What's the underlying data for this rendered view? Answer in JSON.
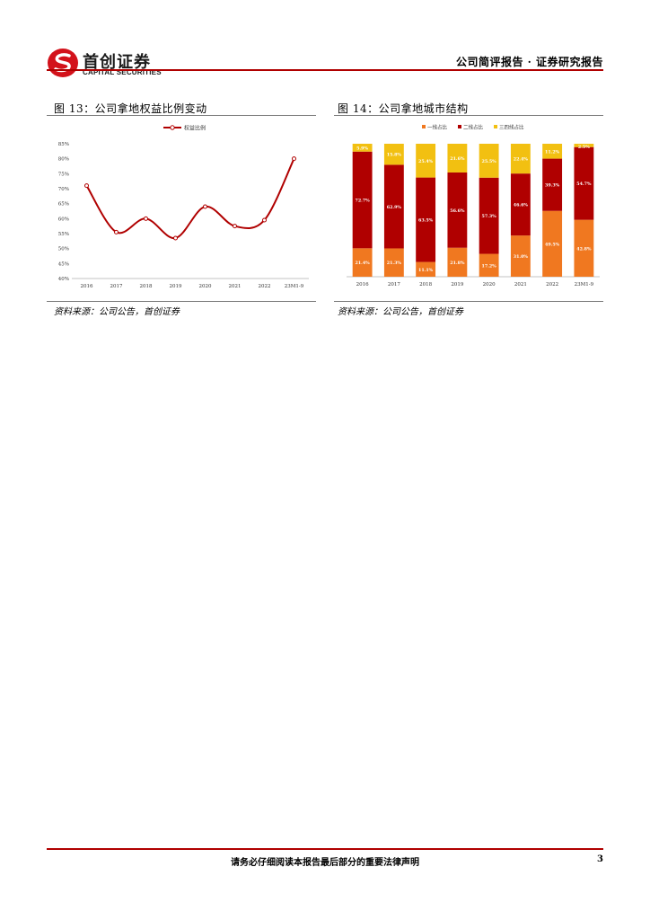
{
  "header": {
    "logo_cn": "首创证券",
    "logo_en": "CAPITAL SECURITIES",
    "title": "公司简评报告 · 证券研究报告",
    "colors": {
      "brand_red": "#b00000"
    }
  },
  "figure13": {
    "title": "图 13：公司拿地权益比例变动",
    "source": "资料来源：公司公告，首创证券",
    "chart_data": {
      "type": "line",
      "legend": [
        "权益比例"
      ],
      "legend_position": "top-center",
      "categories": [
        "2016",
        "2017",
        "2018",
        "2019",
        "2020",
        "2021",
        "2022",
        "23M1-9"
      ],
      "series": [
        {
          "name": "权益比例",
          "values": [
            71,
            55.5,
            60,
            53.5,
            64,
            57.5,
            59.5,
            80
          ]
        }
      ],
      "y_ticks": [
        "40%",
        "45%",
        "50%",
        "55%",
        "60%",
        "65%",
        "70%",
        "75%",
        "80%",
        "85%"
      ],
      "ylim": [
        40,
        85
      ],
      "grid": false,
      "colors": {
        "line": "#b00000"
      }
    }
  },
  "figure14": {
    "title": "图 14：公司拿地城市结构",
    "source": "资料来源：公司公告，首创证券",
    "chart_data": {
      "type": "bar",
      "stacked": true,
      "legend_position": "top-center",
      "categories": [
        "2016",
        "2017",
        "2018",
        "2019",
        "2020",
        "2021",
        "2022",
        "23M1-9"
      ],
      "series": [
        {
          "name": "一线占比",
          "values": [
            21.4,
            21.3,
            11.1,
            21.8,
            17.2,
            31.0,
            49.5,
            42.8
          ],
          "labels": [
            "21.4%",
            "21.3%",
            "11.1%",
            "21.8%",
            "17.2%",
            "31.0%",
            "49.5%",
            "42.8%"
          ]
        },
        {
          "name": "二线占比",
          "values": [
            72.7,
            62.9,
            63.5,
            56.6,
            57.3,
            46.6,
            39.3,
            54.7
          ],
          "labels": [
            "72.7%",
            "62.9%",
            "63.5%",
            "56.6%",
            "57.3%",
            "46.6%",
            "39.3%",
            "54.7%"
          ]
        },
        {
          "name": "三四线占比",
          "values": [
            5.9,
            15.8,
            25.4,
            21.6,
            25.5,
            22.4,
            11.2,
            2.5
          ],
          "labels": [
            "5.9%",
            "15.8%",
            "25.4%",
            "21.6%",
            "25.5%",
            "22.4%",
            "11.2%",
            "2.5%"
          ]
        }
      ],
      "ylim": [
        0,
        100
      ],
      "grid": false,
      "colors": {
        "一线占比": "#f07820",
        "二线占比": "#b00000",
        "三四线占比": "#f2c011"
      }
    }
  },
  "footer": {
    "disclaimer": "请务必仔细阅读本报告最后部分的重要法律声明",
    "page_number": "3"
  }
}
